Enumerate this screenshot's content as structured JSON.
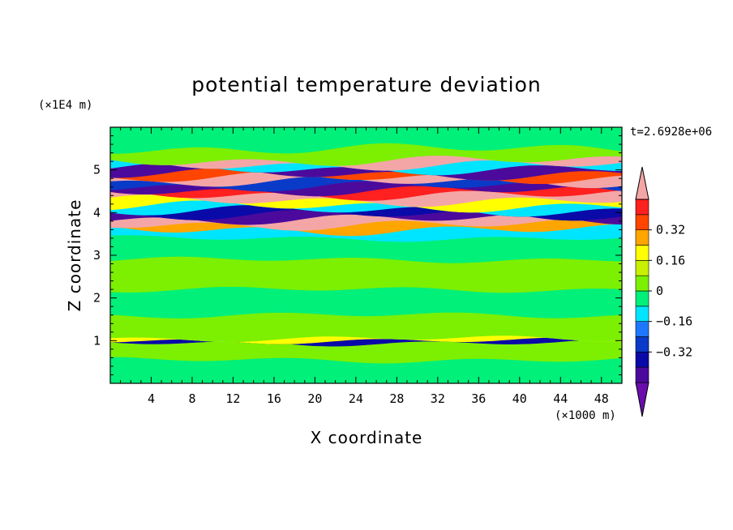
{
  "chart_data": {
    "type": "heatmap",
    "title": "potential temperature deviation",
    "xlabel": "X coordinate",
    "ylabel": "Z coordinate",
    "x_unit": "(×1000 m)",
    "y_unit": "(×1E4 m)",
    "time_label": "t=2.6928e+06",
    "xlim": [
      0,
      50
    ],
    "ylim": [
      0,
      6
    ],
    "x_ticks": [
      4,
      8,
      12,
      16,
      20,
      24,
      28,
      32,
      36,
      40,
      44,
      48
    ],
    "y_ticks": [
      1,
      2,
      3,
      4,
      5
    ],
    "colorbar": {
      "levels": [
        -0.48,
        -0.4,
        -0.32,
        -0.24,
        -0.16,
        -0.08,
        0,
        0.08,
        0.16,
        0.24,
        0.32,
        0.4,
        0.48
      ],
      "colors": [
        "#6a0dad",
        "#4b0a9c",
        "#0a0aa8",
        "#0a3ac8",
        "#1e78ff",
        "#00e5ff",
        "#00f07a",
        "#7cf000",
        "#c8f000",
        "#ffff00",
        "#ffa500",
        "#ff4500",
        "#ff2020",
        "#f4a6a6"
      ],
      "labels": [
        "0.32",
        "0.16",
        "0",
        "−0.16",
        "−0.32"
      ],
      "label_values": [
        0.32,
        0.16,
        0,
        -0.16,
        -0.32
      ]
    },
    "bands": [
      {
        "z0": 0.0,
        "z1": 0.55,
        "color": "#00f07a"
      },
      {
        "z0": 0.55,
        "z1": 0.95,
        "color": "#7cf000"
      },
      {
        "z0": 0.95,
        "z1": 1.0,
        "color": "#0a0aa8"
      },
      {
        "z0": 1.0,
        "z1": 1.05,
        "color": "#ffff00"
      },
      {
        "z0": 1.05,
        "z1": 1.6,
        "color": "#7cf000"
      },
      {
        "z0": 1.6,
        "z1": 2.2,
        "color": "#00f07a"
      },
      {
        "z0": 2.2,
        "z1": 2.9,
        "color": "#7cf000"
      },
      {
        "z0": 2.9,
        "z1": 3.4,
        "color": "#00f07a"
      },
      {
        "z0": 3.4,
        "z1": 3.6,
        "color": "#00e5ff"
      },
      {
        "z0": 3.6,
        "z1": 3.72,
        "color": "#ffa500"
      },
      {
        "z0": 3.72,
        "z1": 3.85,
        "color": "#f4a6a6"
      },
      {
        "z0": 3.85,
        "z1": 3.95,
        "color": "#4b0a9c"
      },
      {
        "z0": 3.95,
        "z1": 4.05,
        "color": "#0a0aa8"
      },
      {
        "z0": 4.05,
        "z1": 4.15,
        "color": "#00e5ff"
      },
      {
        "z0": 4.15,
        "z1": 4.28,
        "color": "#ffff00"
      },
      {
        "z0": 4.28,
        "z1": 4.42,
        "color": "#f4a6a6"
      },
      {
        "z0": 4.42,
        "z1": 4.52,
        "color": "#ff2020"
      },
      {
        "z0": 4.52,
        "z1": 4.62,
        "color": "#4b0a9c"
      },
      {
        "z0": 4.62,
        "z1": 4.72,
        "color": "#0a3ac8"
      },
      {
        "z0": 4.72,
        "z1": 4.82,
        "color": "#f4a6a6"
      },
      {
        "z0": 4.82,
        "z1": 4.9,
        "color": "#ff4500"
      },
      {
        "z0": 4.9,
        "z1": 5.02,
        "color": "#4b0a9c"
      },
      {
        "z0": 5.02,
        "z1": 5.12,
        "color": "#00e5ff"
      },
      {
        "z0": 5.12,
        "z1": 5.22,
        "color": "#f4a6a6"
      },
      {
        "z0": 5.22,
        "z1": 5.5,
        "color": "#7cf000"
      },
      {
        "z0": 5.5,
        "z1": 6.0,
        "color": "#00f07a"
      }
    ]
  }
}
